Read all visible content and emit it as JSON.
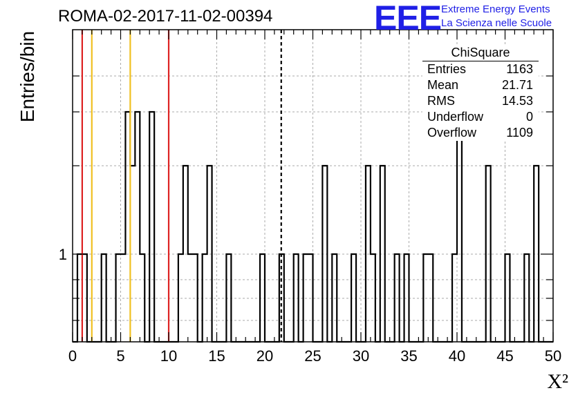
{
  "chart_data": {
    "type": "bar",
    "title": "ROMA-02-2017-11-02-00394",
    "xlabel": "X²",
    "ylabel": "Entries/bin",
    "xlim": [
      0,
      50
    ],
    "bin_width": 0.5,
    "x_ticks": [
      "0",
      "5",
      "10",
      "15",
      "20",
      "25",
      "30",
      "35",
      "40",
      "45",
      "50"
    ],
    "y_tick_labels": [
      "1"
    ],
    "log_y": true,
    "grid": true,
    "bins": [
      {
        "x": 0.5,
        "value": 1
      },
      {
        "x": 1.0,
        "value": 1
      },
      {
        "x": 3.0,
        "value": 1
      },
      {
        "x": 4.5,
        "value": 1
      },
      {
        "x": 5.0,
        "value": 1
      },
      {
        "x": 5.5,
        "value": 3
      },
      {
        "x": 6.0,
        "value": 2
      },
      {
        "x": 6.5,
        "value": 3
      },
      {
        "x": 7.0,
        "value": 1
      },
      {
        "x": 8.0,
        "value": 3
      },
      {
        "x": 11.0,
        "value": 1
      },
      {
        "x": 11.5,
        "value": 2
      },
      {
        "x": 12.0,
        "value": 1
      },
      {
        "x": 12.5,
        "value": 1
      },
      {
        "x": 13.5,
        "value": 1
      },
      {
        "x": 14.0,
        "value": 2
      },
      {
        "x": 16.0,
        "value": 1
      },
      {
        "x": 19.5,
        "value": 1
      },
      {
        "x": 21.5,
        "value": 1
      },
      {
        "x": 23.0,
        "value": 1
      },
      {
        "x": 24.0,
        "value": 1
      },
      {
        "x": 24.5,
        "value": 1
      },
      {
        "x": 26.0,
        "value": 2
      },
      {
        "x": 27.0,
        "value": 1
      },
      {
        "x": 29.0,
        "value": 1
      },
      {
        "x": 30.5,
        "value": 2
      },
      {
        "x": 31.0,
        "value": 1
      },
      {
        "x": 32.0,
        "value": 2
      },
      {
        "x": 33.5,
        "value": 1
      },
      {
        "x": 34.5,
        "value": 1
      },
      {
        "x": 36.5,
        "value": 1
      },
      {
        "x": 37.0,
        "value": 1
      },
      {
        "x": 39.5,
        "value": 1
      },
      {
        "x": 40.0,
        "value": 4
      },
      {
        "x": 43.0,
        "value": 2
      },
      {
        "x": 45.0,
        "value": 1
      },
      {
        "x": 47.0,
        "value": 1
      },
      {
        "x": 48.0,
        "value": 2
      }
    ],
    "vertical_lines": [
      {
        "x": 1.0,
        "color": "#dd2222",
        "style": "solid"
      },
      {
        "x": 2.0,
        "color": "#f0c020",
        "style": "solid"
      },
      {
        "x": 6.0,
        "color": "#f0c020",
        "style": "solid"
      },
      {
        "x": 10.0,
        "color": "#dd2222",
        "style": "solid"
      },
      {
        "x": 21.71,
        "color": "#000000",
        "style": "dashed"
      }
    ],
    "stats_box": {
      "title": "ChiSquare",
      "rows": [
        {
          "label": "Entries",
          "value": "1163"
        },
        {
          "label": "Mean",
          "value": "21.71"
        },
        {
          "label": "RMS",
          "value": "14.53"
        },
        {
          "label": "Underflow",
          "value": "0"
        },
        {
          "label": "Overflow",
          "value": "1109"
        }
      ]
    }
  },
  "logo": {
    "mark": "EEE",
    "line1": "Extreme Energy Events",
    "line2": "La Scienza nelle Scuole",
    "color": "#1f1fe6"
  }
}
